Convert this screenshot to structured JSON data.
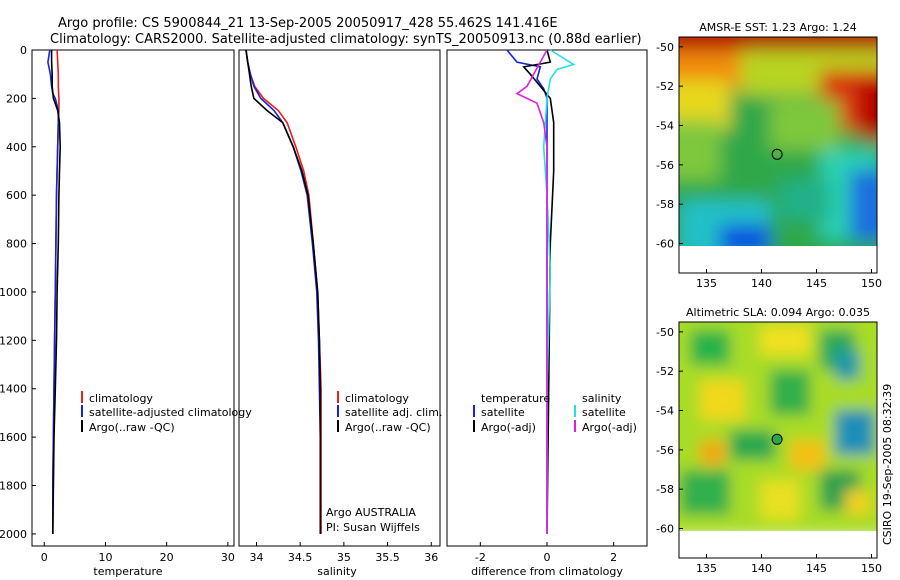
{
  "header": {
    "line1": "Argo profile: CS 5900844_21 13-Sep-2005 20050917_428 55.462S 141.416E",
    "line2": "Climatology: CARS2000. Satellite-adjusted climatology: synTS_20050913.nc (0.88d earlier)"
  },
  "colors": {
    "climatology": "#e8201c",
    "satellite": "#1525d6",
    "argo": "#000000",
    "sal_sat": "#22e0e8",
    "sal_argo": "#e020e0"
  },
  "chart_data": [
    {
      "type": "line",
      "id": "temperature",
      "xlabel": "temperature",
      "xlim": [
        -2,
        31
      ],
      "ylim": [
        2050,
        0
      ],
      "xticks": [
        0,
        10,
        20,
        30
      ],
      "yticks": [
        0,
        200,
        400,
        600,
        800,
        1000,
        1200,
        1400,
        1600,
        1800,
        2000
      ],
      "legend": [
        "climatology",
        "satellite-adjusted climatology",
        "Argo(..raw -QC)"
      ],
      "series": [
        {
          "name": "climatology",
          "x": [
            2.1,
            2.2,
            2.3,
            2.3,
            2.4,
            2.4,
            2.3,
            2.2,
            2.1,
            2.0,
            1.9,
            1.8,
            1.7,
            1.6,
            1.5,
            1.4,
            1.4
          ],
          "y": [
            0,
            50,
            100,
            150,
            200,
            250,
            300,
            400,
            500,
            600,
            800,
            1000,
            1200,
            1400,
            1600,
            1800,
            2000
          ]
        },
        {
          "name": "satellite-adjusted climatology",
          "x": [
            0.9,
            0.6,
            1.0,
            1.2,
            1.4,
            1.8,
            2.3,
            2.3,
            2.2,
            2.1,
            2.0,
            1.9,
            1.8,
            1.7,
            1.6,
            1.5,
            1.4,
            1.4
          ],
          "y": [
            0,
            50,
            100,
            150,
            180,
            200,
            250,
            300,
            400,
            500,
            600,
            800,
            1000,
            1200,
            1400,
            1600,
            1800,
            2000
          ]
        },
        {
          "name": "Argo(..raw -QC)",
          "x": [
            1.2,
            1.2,
            1.3,
            1.3,
            1.5,
            2.2,
            2.5,
            2.6,
            2.5,
            2.4,
            2.3,
            2.1,
            2.0,
            1.8,
            1.6,
            1.5,
            1.4
          ],
          "y": [
            0,
            50,
            100,
            150,
            200,
            250,
            300,
            400,
            500,
            600,
            800,
            1000,
            1200,
            1400,
            1600,
            1800,
            2000
          ]
        }
      ]
    },
    {
      "type": "line",
      "id": "salinity",
      "xlabel": "salinity",
      "xlim": [
        33.8,
        36.1
      ],
      "ylim": [
        2050,
        0
      ],
      "xticks": [
        34,
        34.5,
        35,
        35.5,
        36
      ],
      "legend": [
        "climatology",
        "satellite adj. clim.",
        "Argo(..raw -QC)"
      ],
      "annotation": [
        "Argo AUSTRALIA",
        "PI: Susan Wijffels"
      ],
      "series": [
        {
          "name": "climatology",
          "x": [
            33.88,
            33.9,
            33.93,
            33.98,
            34.08,
            34.25,
            34.35,
            34.45,
            34.54,
            34.6,
            34.65,
            34.7,
            34.72,
            34.74,
            34.74,
            34.74
          ],
          "y": [
            0,
            50,
            100,
            150,
            200,
            250,
            300,
            400,
            500,
            600,
            800,
            1000,
            1200,
            1400,
            1600,
            2000
          ]
        },
        {
          "name": "satellite adj. clim.",
          "x": [
            33.88,
            33.9,
            33.93,
            33.97,
            34.05,
            34.2,
            34.3,
            34.42,
            34.51,
            34.58,
            34.64,
            34.69,
            34.71,
            34.72,
            34.73,
            34.73
          ],
          "y": [
            0,
            50,
            100,
            150,
            200,
            250,
            300,
            400,
            500,
            600,
            800,
            1000,
            1200,
            1400,
            1600,
            2000
          ]
        },
        {
          "name": "Argo(..raw -QC)",
          "x": [
            33.88,
            33.9,
            33.92,
            33.94,
            33.97,
            34.12,
            34.3,
            34.42,
            34.52,
            34.59,
            34.65,
            34.7,
            34.72,
            34.73,
            34.73,
            34.73
          ],
          "y": [
            0,
            50,
            100,
            150,
            200,
            250,
            300,
            400,
            500,
            600,
            800,
            1000,
            1200,
            1400,
            1600,
            2000
          ]
        }
      ]
    },
    {
      "type": "line",
      "id": "difference",
      "xlabel": "difference from climatology",
      "xlim": [
        -3,
        3
      ],
      "ylim": [
        2050,
        0
      ],
      "xticks": [
        -2,
        0,
        2
      ],
      "legend_temperature": {
        "title": "temperature",
        "items": [
          "satellite",
          "Argo(-adj)"
        ]
      },
      "legend_salinity": {
        "title": "salinity",
        "items": [
          "satellite",
          "Argo(-adj)"
        ]
      },
      "series": [
        {
          "name": "temperature satellite",
          "x": [
            -1.2,
            -0.9,
            -0.2,
            -0.3,
            -0.1,
            0.0,
            0.0,
            0.0,
            0.0,
            0.0
          ],
          "y": [
            0,
            50,
            70,
            120,
            160,
            200,
            400,
            800,
            1400,
            2000
          ]
        },
        {
          "name": "temperature Argo(-adj)",
          "x": [
            0.0,
            0.1,
            -0.7,
            -0.5,
            -0.2,
            0.1,
            0.2,
            0.2,
            0.1,
            0.05,
            0.0
          ],
          "y": [
            0,
            50,
            70,
            100,
            150,
            200,
            300,
            500,
            800,
            1400,
            2000
          ]
        },
        {
          "name": "salinity satellite",
          "x": [
            0.1,
            0.8,
            0.3,
            0.1,
            0.0,
            -0.1,
            0.0,
            0.1,
            0.0,
            0.0
          ],
          "y": [
            0,
            60,
            80,
            120,
            200,
            400,
            600,
            900,
            1400,
            2000
          ]
        },
        {
          "name": "salinity Argo(-adj)",
          "x": [
            0.0,
            -0.6,
            -0.9,
            -0.3,
            -0.1,
            0.0,
            0.0,
            0.0
          ],
          "y": [
            0,
            150,
            180,
            220,
            300,
            400,
            800,
            2000
          ]
        }
      ]
    },
    {
      "type": "heatmap",
      "id": "sst-map",
      "title": "AMSR-E SST: 1.23 Argo: 1.24",
      "xlim": [
        132.5,
        150.5
      ],
      "ylim": [
        -61.5,
        -49.5
      ],
      "xticks": [
        135,
        140,
        145,
        150
      ],
      "yticks": [
        -50,
        -52,
        -54,
        -56,
        -58,
        -60
      ],
      "marker": {
        "lon": 141.416,
        "lat": -55.462
      }
    },
    {
      "type": "heatmap",
      "id": "sla-map",
      "title": "Altimetric SLA: 0.094 Argo: 0.035",
      "xlim": [
        132.5,
        150.5
      ],
      "ylim": [
        -61.5,
        -49.5
      ],
      "xticks": [
        135,
        140,
        145,
        150
      ],
      "yticks": [
        -50,
        -52,
        -54,
        -56,
        -58,
        -60
      ],
      "marker": {
        "lon": 141.416,
        "lat": -55.462
      }
    }
  ],
  "footer_stamp": "CSIRO 19-Sep-2005 08:32:39"
}
